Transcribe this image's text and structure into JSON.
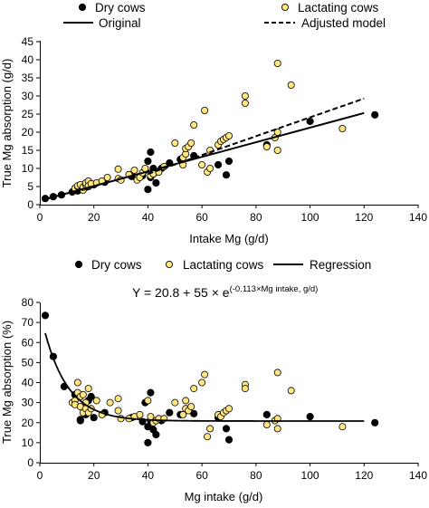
{
  "chart_data": [
    {
      "type": "scatter",
      "title": "",
      "xlabel": "Intake  Mg (g/d)",
      "ylabel": "True Mg absorption (g/d)",
      "xlim": [
        0,
        140
      ],
      "ylim": [
        0,
        45
      ],
      "xticks": [
        "0",
        "20",
        "40",
        "60",
        "80",
        "100",
        "120",
        "140"
      ],
      "yticks": [
        "0",
        "5",
        "10",
        "15",
        "20",
        "25",
        "30",
        "35",
        "40",
        "45"
      ],
      "grid": false,
      "legend_position": "top",
      "legend": {
        "dry": "Dry cows",
        "lactating": "Lactating cows",
        "original": "Original",
        "adjusted": "Adjusted model"
      },
      "series": [
        {
          "name": "Dry cows",
          "marker": "filled-circle",
          "color": "#000000",
          "points": [
            [
              2,
              1.7
            ],
            [
              5,
              2.2
            ],
            [
              8,
              2.7
            ],
            [
              12,
              3.5
            ],
            [
              14,
              3.8
            ],
            [
              16,
              4.3
            ],
            [
              17,
              4.8
            ],
            [
              18,
              5
            ],
            [
              20,
              5.5
            ],
            [
              24,
              6.2
            ],
            [
              34,
              7.8
            ],
            [
              38,
              8
            ],
            [
              39,
              9.5
            ],
            [
              40,
              4.2
            ],
            [
              40,
              12
            ],
            [
              41,
              7.5
            ],
            [
              41,
              14.5
            ],
            [
              42,
              8.5
            ],
            [
              42,
              10
            ],
            [
              43,
              6
            ],
            [
              45,
              10
            ],
            [
              48,
              11.5
            ],
            [
              52,
              12.5
            ],
            [
              57,
              13.5
            ],
            [
              66,
              11
            ],
            [
              69,
              8.2
            ],
            [
              70,
              12
            ],
            [
              84,
              16.5
            ],
            [
              100,
              23
            ],
            [
              124,
              24.8
            ]
          ]
        },
        {
          "name": "Lactating cows",
          "marker": "open-circle",
          "color": "#ffe680",
          "points": [
            [
              13,
              4.5
            ],
            [
              14,
              5
            ],
            [
              14,
              5.2
            ],
            [
              15,
              5.5
            ],
            [
              16,
              4
            ],
            [
              16,
              4.8
            ],
            [
              17,
              5.5
            ],
            [
              17,
              6
            ],
            [
              18,
              6.5
            ],
            [
              18,
              5.2
            ],
            [
              19,
              5.8
            ],
            [
              21,
              6
            ],
            [
              23,
              6.5
            ],
            [
              25,
              7.5
            ],
            [
              29,
              7.2
            ],
            [
              29,
              9.8
            ],
            [
              30,
              6.8
            ],
            [
              33,
              8.3
            ],
            [
              35,
              9.5
            ],
            [
              36,
              6.8
            ],
            [
              37,
              7.5
            ],
            [
              38,
              8.8
            ],
            [
              39,
              10
            ],
            [
              41,
              8
            ],
            [
              42,
              8.5
            ],
            [
              44,
              9
            ],
            [
              46,
              10.5
            ],
            [
              50,
              17
            ],
            [
              53,
              11
            ],
            [
              53,
              13
            ],
            [
              54,
              14
            ],
            [
              54,
              15.5
            ],
            [
              55,
              16
            ],
            [
              56,
              17
            ],
            [
              57,
              22
            ],
            [
              60,
              11
            ],
            [
              61,
              26
            ],
            [
              62,
              9
            ],
            [
              63,
              10
            ],
            [
              63,
              15
            ],
            [
              66,
              16.5
            ],
            [
              67,
              17.5
            ],
            [
              68,
              18
            ],
            [
              69,
              18.5
            ],
            [
              70,
              19
            ],
            [
              76,
              28
            ],
            [
              76,
              30
            ],
            [
              84,
              16
            ],
            [
              87,
              18.5
            ],
            [
              88,
              20
            ],
            [
              88,
              15
            ],
            [
              88,
              39
            ],
            [
              93,
              33
            ],
            [
              112,
              21
            ]
          ]
        },
        {
          "name": "Original",
          "type": "line",
          "style": "solid",
          "x": [
            2,
            120
          ],
          "y": [
            1.5,
            25.3
          ]
        },
        {
          "name": "Adjusted model",
          "type": "line",
          "style": "dashed",
          "x": [
            40,
            120
          ],
          "y": [
            8.5,
            29.3
          ]
        }
      ]
    },
    {
      "type": "scatter",
      "title": "",
      "xlabel": "Mg intake (g/d)",
      "ylabel": "True Mg absorption (%)",
      "xlim": [
        0,
        140
      ],
      "ylim": [
        0,
        80
      ],
      "xticks": [
        "0",
        "20",
        "40",
        "60",
        "80",
        "100",
        "120",
        "140"
      ],
      "yticks": [
        "0",
        "10",
        "20",
        "30",
        "40",
        "50",
        "60",
        "70",
        "80"
      ],
      "grid": false,
      "legend_position": "top",
      "legend": {
        "dry": "Dry cows",
        "lactating": "Lactating cows",
        "regression": "Regression"
      },
      "equation": {
        "main": "Y = 20.8 + 55 × e",
        "exponent": "(-0.113×Mg intake, g/d)"
      },
      "regression": {
        "a": 20.8,
        "b": 55,
        "k": -0.113,
        "x_range": [
          2,
          120
        ]
      },
      "series": [
        {
          "name": "Dry cows",
          "marker": "filled-circle",
          "color": "#000000",
          "points": [
            [
              2,
              73.5
            ],
            [
              5,
              53
            ],
            [
              9,
              38
            ],
            [
              13,
              34
            ],
            [
              15,
              21
            ],
            [
              15,
              21.5
            ],
            [
              17,
              24
            ],
            [
              18,
              31
            ],
            [
              19,
              33
            ],
            [
              20,
              22.5
            ],
            [
              24,
              25
            ],
            [
              34,
              22.5
            ],
            [
              38,
              20.5
            ],
            [
              39,
              30
            ],
            [
              40,
              10
            ],
            [
              40,
              18
            ],
            [
              41,
              21
            ],
            [
              41,
              35
            ],
            [
              42,
              16.5
            ],
            [
              43,
              14
            ],
            [
              45,
              21
            ],
            [
              48,
              25
            ],
            [
              52,
              24
            ],
            [
              57,
              24.5
            ],
            [
              66,
              22.5
            ],
            [
              69,
              17
            ],
            [
              70,
              11.5
            ],
            [
              84,
              24
            ],
            [
              100,
              23
            ],
            [
              124,
              20
            ]
          ]
        },
        {
          "name": "Lactating cows",
          "marker": "open-circle",
          "color": "#ffe680",
          "points": [
            [
              12,
              30
            ],
            [
              13,
              31
            ],
            [
              13,
              29
            ],
            [
              14,
              35
            ],
            [
              14,
              40
            ],
            [
              15,
              33
            ],
            [
              15,
              28
            ],
            [
              16,
              34
            ],
            [
              16,
              25
            ],
            [
              17,
              30
            ],
            [
              17,
              27
            ],
            [
              18,
              25
            ],
            [
              18,
              37
            ],
            [
              19,
              27
            ],
            [
              21,
              31
            ],
            [
              23,
              24
            ],
            [
              26,
              30
            ],
            [
              29,
              32
            ],
            [
              29,
              26
            ],
            [
              30,
              22
            ],
            [
              33,
              22
            ],
            [
              35,
              23
            ],
            [
              37,
              24
            ],
            [
              40,
              31
            ],
            [
              41,
              23
            ],
            [
              42,
              20
            ],
            [
              43,
              21
            ],
            [
              44,
              22
            ],
            [
              46,
              22
            ],
            [
              50,
              30
            ],
            [
              53,
              24
            ],
            [
              54,
              27
            ],
            [
              54,
              31
            ],
            [
              55,
              26
            ],
            [
              56,
              28
            ],
            [
              57,
              37
            ],
            [
              60,
              40
            ],
            [
              61,
              44
            ],
            [
              62,
              13
            ],
            [
              63,
              17
            ],
            [
              66,
              24
            ],
            [
              67,
              23
            ],
            [
              68,
              25
            ],
            [
              69,
              26
            ],
            [
              70,
              27
            ],
            [
              76,
              39
            ],
            [
              76,
              37
            ],
            [
              84,
              19
            ],
            [
              87,
              21
            ],
            [
              88,
              22
            ],
            [
              88,
              45
            ],
            [
              88,
              17
            ],
            [
              93,
              36
            ],
            [
              112,
              18
            ]
          ]
        }
      ]
    }
  ]
}
